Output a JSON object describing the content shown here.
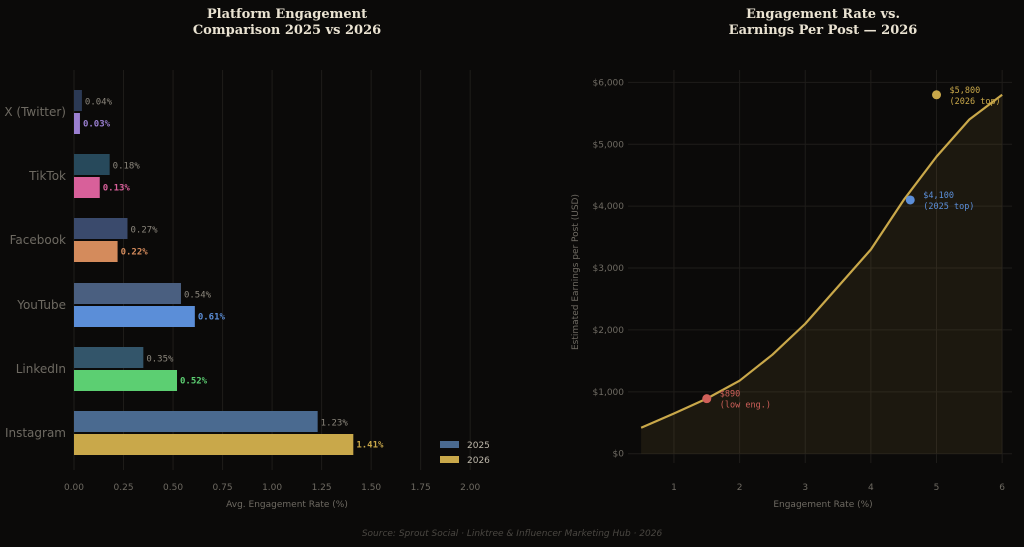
{
  "footer": "Source: Sprout Social · Linktree & Influencer Marketing Hub · 2026",
  "chart_data": [
    {
      "type": "bar",
      "orientation": "horizontal",
      "title_lines": [
        "Platform Engagement",
        "Comparison 2025 vs 2026"
      ],
      "xlabel": "Avg. Engagement Rate (%)",
      "xlim": [
        0,
        2.1
      ],
      "xticks": [
        "0.00",
        "0.25",
        "0.50",
        "0.75",
        "1.00",
        "1.25",
        "1.50",
        "1.75",
        "2.00"
      ],
      "categories": [
        "X (Twitter)",
        "TikTok",
        "Facebook",
        "YouTube",
        "LinkedIn",
        "Instagram"
      ],
      "series": [
        {
          "name": "2025",
          "values": [
            0.04,
            0.18,
            0.27,
            0.54,
            0.35,
            1.23
          ],
          "labels": [
            "0.04%",
            "0.18%",
            "0.27%",
            "0.54%",
            "0.35%",
            "1.23%"
          ]
        },
        {
          "name": "2026",
          "values": [
            0.03,
            0.13,
            0.22,
            0.61,
            0.52,
            1.41
          ],
          "labels": [
            "0.03%",
            "0.13%",
            "0.22%",
            "0.61%",
            "0.52%",
            "1.41%"
          ]
        }
      ],
      "colors_2025": [
        "#2b3954",
        "#27495b",
        "#3a4a6c",
        "#4a5f80",
        "#33556a",
        "#4a6a90"
      ],
      "colors_2026": [
        "#9a7fd0",
        "#d8609a",
        "#d48b5c",
        "#5b8ed8",
        "#5ccf72",
        "#c9a84a"
      ],
      "legend": {
        "placement": "bottom-right",
        "colors": [
          "#4a6a90",
          "#c9a84a"
        ]
      },
      "grid": true
    },
    {
      "type": "area",
      "title_lines": [
        "Engagement Rate vs.",
        "Earnings Per Post — 2026"
      ],
      "xlabel": "Engagement Rate (%)",
      "ylabel": "Estimated Earnings per Post (USD)",
      "xlim": [
        0.3,
        6.15
      ],
      "ylim": [
        -150,
        6200
      ],
      "xticks": [
        "1",
        "2",
        "3",
        "4",
        "5",
        "6"
      ],
      "yticks": [
        "$0",
        "$1,000",
        "$2,000",
        "$3,000",
        "$4,000",
        "$5,000",
        "$6,000"
      ],
      "x": [
        0.5,
        1.0,
        1.5,
        2.0,
        2.5,
        3.0,
        3.5,
        4.0,
        4.5,
        5.0,
        5.5,
        6.0
      ],
      "y": [
        420,
        650,
        890,
        1180,
        1600,
        2100,
        2700,
        3300,
        4100,
        4800,
        5400,
        5800
      ],
      "line_color": "#c9a84a",
      "annotations": [
        {
          "x": 1.5,
          "y": 890,
          "lines": [
            "$890",
            "(low eng.)"
          ],
          "color": "#d0605a"
        },
        {
          "x": 4.6,
          "y": 4100,
          "lines": [
            "$4,100",
            "(2025 top)"
          ],
          "color": "#5b8ed8"
        },
        {
          "x": 5.0,
          "y": 5800,
          "lines": [
            "$5,800",
            "(2026 top)"
          ],
          "color": "#c9a84a"
        }
      ],
      "grid": true
    }
  ]
}
